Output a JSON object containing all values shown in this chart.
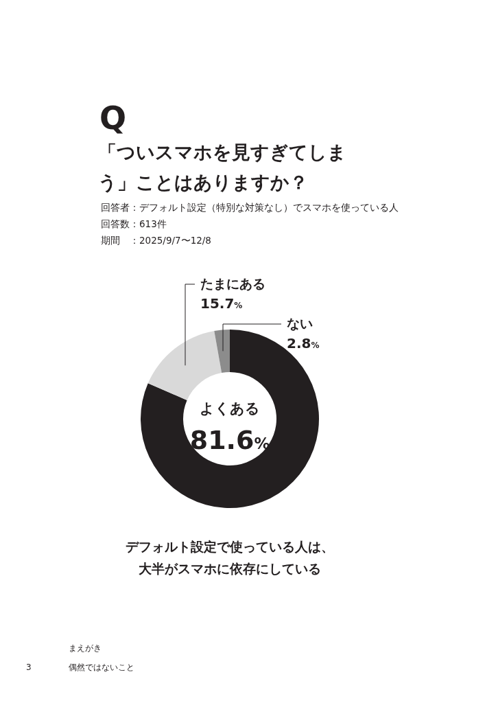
{
  "chart_data": {
    "type": "donut",
    "title": "Q",
    "subtitle": "「ついスマホを見すぎてしまう」ことはありますか？",
    "categories": [
      "よくある",
      "たまにある",
      "ない"
    ],
    "values": [
      81.6,
      15.7,
      2.8
    ],
    "value_labels": [
      "81.6%",
      "15.7%",
      "2.8%"
    ],
    "colors": [
      "#231f20",
      "#d9d9d9",
      "#8c8c8c"
    ],
    "annotations": [
      "回答者：デフォルト設定（特別な対策なし）でスマホを使っている人",
      "回答数：613件",
      "期間　：2025/9/7〜12/8",
      "デフォルト設定で使っている人は、大半がスマホに依存にしている",
      "まえがき",
      "3",
      "偶然ではないこと"
    ]
  }
}
